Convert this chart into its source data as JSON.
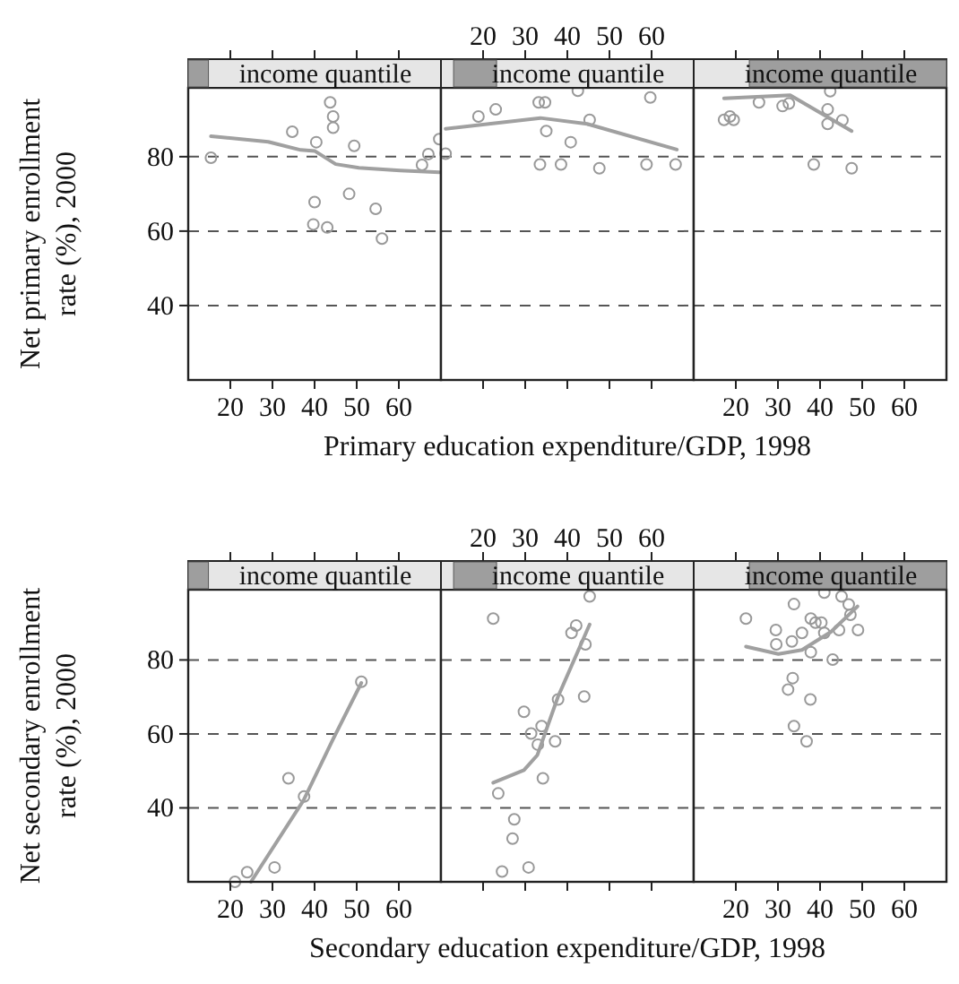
{
  "chart_data": [
    {
      "type": "scatter",
      "title": "income quantile",
      "ylabel": "Net primary enrollment rate (%), 2000",
      "xlim": [
        10,
        70
      ],
      "ylim": [
        20,
        98.5
      ],
      "xticks": [
        20,
        30,
        40,
        50,
        60
      ],
      "yticks": [
        40,
        60,
        80
      ],
      "grid": "y",
      "series": [
        {
          "marker": "circle",
          "color": "#999999",
          "x": [
            15.4,
            34.7,
            40.4,
            43.7,
            44.4,
            44.4,
            49.4,
            40,
            39.7,
            43,
            48.2,
            54.5,
            56,
            65.5,
            67,
            69.6
          ],
          "values": [
            79.7,
            86.7,
            83.9,
            94.6,
            90.8,
            87.8,
            82.9,
            67.8,
            61.8,
            61,
            70,
            66,
            58,
            77.8,
            80.7,
            84.7
          ]
        },
        {
          "type": "line",
          "marker": "none",
          "color": "#a0a0a0",
          "x": [
            15.4,
            29,
            36.7,
            40.1,
            45,
            50.5,
            60.3,
            69.6
          ],
          "values": [
            85.5,
            84,
            81.8,
            81.5,
            78,
            77,
            76.3,
            75.8
          ]
        }
      ]
    },
    {
      "type": "scatter",
      "title": "income quantile",
      "xlabel": "Primary education expenditure/GDP, 1998",
      "xlim": [
        10,
        70
      ],
      "ylim": [
        20,
        98.5
      ],
      "xticks": [
        20,
        30,
        40,
        50,
        60
      ],
      "yticks": [
        40,
        60,
        80
      ],
      "grid": "y",
      "tick_labels": "x",
      "series": [
        {
          "marker": "circle",
          "color": "#999999",
          "x": [
            11.1,
            18.9,
            23,
            33.2,
            34.7,
            42.5,
            35,
            40.8,
            45.3,
            33.5,
            38.5,
            47.6,
            59.7,
            58.8,
            65.7
          ],
          "values": [
            80.8,
            90.8,
            92.7,
            94.6,
            94.6,
            97.7,
            86.9,
            83.9,
            89.9,
            77.9,
            77.9,
            76.9,
            95.9,
            77.9,
            77.9
          ]
        },
        {
          "type": "line",
          "marker": "none",
          "color": "#a0a0a0",
          "x": [
            11.1,
            33.6,
            44.7,
            66
          ],
          "values": [
            87.5,
            90.4,
            88.8,
            81.9
          ]
        }
      ]
    },
    {
      "type": "scatter",
      "title": "income quantile",
      "xlim": [
        10,
        70
      ],
      "ylim": [
        20,
        98.5
      ],
      "xticks": [
        20,
        30,
        40,
        50,
        60
      ],
      "yticks": [
        40,
        60,
        80
      ],
      "grid": "y",
      "tick_labels": "x",
      "series": [
        {
          "marker": "circle",
          "color": "#999999",
          "x": [
            17.2,
            18.6,
            19.5,
            25.5,
            31.1,
            32.6,
            38.5,
            41.8,
            41.8,
            45.3,
            47.5,
            42.4
          ],
          "values": [
            89.9,
            90.8,
            89.9,
            94.6,
            93.6,
            94.3,
            77.9,
            92.7,
            88.8,
            89.8,
            76.9,
            97.6
          ]
        },
        {
          "type": "line",
          "marker": "none",
          "color": "#a0a0a0",
          "x": [
            17.2,
            32.9,
            47.5
          ],
          "values": [
            95.7,
            96.5,
            86.9
          ]
        }
      ]
    },
    {
      "type": "scatter",
      "title": "income quantile",
      "ylabel": "Net secondary enrollment rate (%), 2000",
      "xlim": [
        10,
        70
      ],
      "ylim": [
        20,
        99
      ],
      "xticks": [
        20,
        30,
        40,
        50,
        60
      ],
      "yticks": [
        40,
        60,
        80
      ],
      "grid": "y",
      "series": [
        {
          "marker": "circle",
          "color": "#999999",
          "x": [
            21.1,
            24,
            30.5,
            33.8,
            37.5,
            51.1
          ],
          "values": [
            20,
            22.6,
            23.9,
            48,
            43.1,
            74.1
          ]
        },
        {
          "type": "line",
          "marker": "none",
          "color": "#a0a0a0",
          "x": [
            24.9,
            37.4,
            44.3,
            51.1
          ],
          "values": [
            20,
            42.1,
            58.4,
            73.8
          ]
        }
      ]
    },
    {
      "type": "scatter",
      "title": "income quantile",
      "xlabel": "Secondary education expenditure/GDP, 1998",
      "xlim": [
        10,
        70
      ],
      "ylim": [
        20,
        99
      ],
      "xticks": [
        20,
        30,
        40,
        50,
        60
      ],
      "yticks": [
        40,
        60,
        80
      ],
      "grid": "y",
      "tick_labels": "x",
      "series": [
        {
          "marker": "circle",
          "color": "#999999",
          "x": [
            22.4,
            23.6,
            27.4,
            27,
            24.5,
            30.8,
            29.7,
            31.4,
            33.9,
            33,
            34.2,
            37.1,
            37.8,
            41,
            42.1,
            44.3,
            44,
            45.3
          ],
          "values": [
            91.2,
            43.9,
            36.9,
            31.7,
            22.8,
            23.9,
            66,
            60.1,
            62.1,
            57.1,
            48,
            58,
            69.3,
            87.3,
            89.3,
            84.2,
            70.1,
            97.2
          ]
        },
        {
          "type": "line",
          "marker": "none",
          "color": "#a0a0a0",
          "x": [
            22.4,
            29.7,
            32.9,
            37.8,
            45.3
          ],
          "values": [
            46.8,
            50.2,
            54.3,
            70.1,
            89.6
          ]
        }
      ]
    },
    {
      "type": "scatter",
      "title": "income quantile",
      "xlim": [
        10,
        70
      ],
      "ylim": [
        20,
        99
      ],
      "xticks": [
        20,
        30,
        40,
        50,
        60
      ],
      "yticks": [
        40,
        60,
        80
      ],
      "grid": "y",
      "tick_labels": "x",
      "series": [
        {
          "marker": "circle",
          "color": "#999999",
          "x": [
            22.4,
            29.5,
            29.6,
            33.3,
            33.8,
            35.7,
            37.8,
            38.9,
            40.3,
            41,
            41,
            37.8,
            43,
            44.5,
            45.1,
            47.2,
            46.8,
            49,
            33.5,
            32.4,
            37.7,
            33.8,
            36.8
          ],
          "values": [
            91.2,
            88.1,
            84.2,
            85,
            95.1,
            87.3,
            91.2,
            90.1,
            90.1,
            98.2,
            87.3,
            82.1,
            80.1,
            88.1,
            97.2,
            92.2,
            95,
            88.1,
            75.1,
            72,
            69.3,
            62.1,
            58
          ]
        },
        {
          "type": "line",
          "marker": "none",
          "color": "#a0a0a0",
          "x": [
            22.4,
            30.1,
            35.7,
            42.6,
            48.9
          ],
          "values": [
            83.6,
            81.6,
            82.7,
            87.6,
            94.5
          ]
        }
      ]
    }
  ]
}
